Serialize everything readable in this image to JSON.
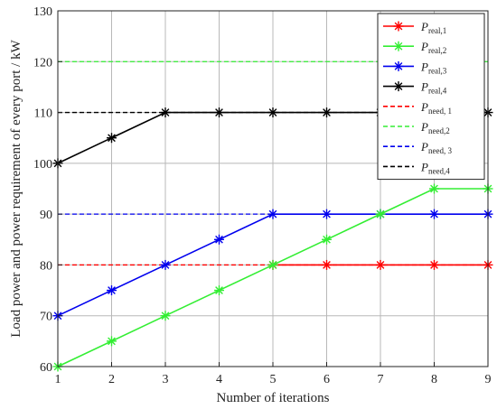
{
  "chart_data": {
    "type": "line",
    "xlabel": "Number of iterations",
    "ylabel": "Load power and power requirement of every port / kW",
    "xlim": [
      1,
      9
    ],
    "ylim": [
      60,
      130
    ],
    "xticks": [
      1,
      2,
      3,
      4,
      5,
      6,
      7,
      8,
      9
    ],
    "yticks": [
      60,
      70,
      80,
      90,
      100,
      110,
      120,
      130
    ],
    "grid": true,
    "legend_position": "top-right",
    "x": [
      1,
      2,
      3,
      4,
      5,
      6,
      7,
      8,
      9
    ],
    "series": [
      {
        "name": "P",
        "sub": "real,1",
        "color": "#ff0000",
        "style": "solid",
        "marker": "asterisk",
        "values": [
          null,
          null,
          null,
          null,
          80,
          80,
          80,
          80,
          80
        ]
      },
      {
        "name": "P",
        "sub": "real,2",
        "color": "#33ee33",
        "style": "solid",
        "marker": "asterisk",
        "values": [
          60,
          65,
          70,
          75,
          80,
          85,
          90,
          95,
          95
        ]
      },
      {
        "name": "P",
        "sub": "real,3",
        "color": "#0000ee",
        "style": "solid",
        "marker": "asterisk",
        "values": [
          70,
          75,
          80,
          85,
          90,
          90,
          90,
          90,
          90
        ]
      },
      {
        "name": "P",
        "sub": "real,4",
        "color": "#000000",
        "style": "solid",
        "marker": "asterisk",
        "values": [
          100,
          105,
          110,
          110,
          110,
          110,
          110,
          110,
          110
        ]
      },
      {
        "name": "P",
        "sub": "need, 1",
        "color": "#ff0000",
        "style": "dashed",
        "marker": "none",
        "values": [
          80,
          80,
          80,
          80,
          80,
          80,
          80,
          80,
          80
        ]
      },
      {
        "name": "P",
        "sub": "need,2",
        "color": "#33ee33",
        "style": "dashed",
        "marker": "none",
        "values": [
          120,
          120,
          120,
          120,
          120,
          120,
          120,
          120,
          120
        ]
      },
      {
        "name": "P",
        "sub": "need, 3",
        "color": "#0000ee",
        "style": "dashed",
        "marker": "none",
        "values": [
          90,
          90,
          90,
          90,
          90,
          90,
          90,
          90,
          90
        ]
      },
      {
        "name": "P",
        "sub": "need,4",
        "color": "#000000",
        "style": "dashed",
        "marker": "none",
        "values": [
          110,
          110,
          110,
          110,
          110,
          110,
          110,
          110,
          110
        ]
      }
    ]
  }
}
